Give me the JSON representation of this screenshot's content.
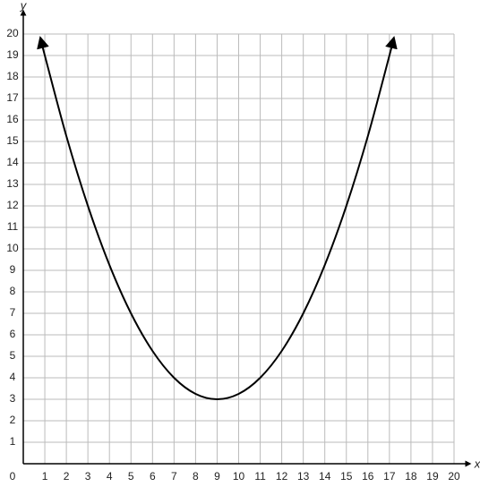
{
  "chart_data": {
    "type": "line",
    "x_label": "x",
    "y_label": "y",
    "x": [
      0.8,
      1,
      2,
      3,
      4,
      5,
      6,
      7,
      8,
      9,
      10,
      11,
      12,
      13,
      14,
      15,
      16,
      17,
      17.2
    ],
    "series": [
      {
        "color": "#000000",
        "values": [
          19.8,
          19,
          15.25,
          12,
          9.25,
          7,
          5.25,
          4,
          3.25,
          3,
          3.25,
          4,
          5.25,
          7,
          9.25,
          12,
          15.25,
          19,
          19.8
        ]
      }
    ],
    "xlim": [
      0,
      20
    ],
    "ylim": [
      0,
      20
    ],
    "xticks": [
      0,
      1,
      2,
      3,
      4,
      5,
      6,
      7,
      8,
      9,
      10,
      11,
      12,
      13,
      14,
      15,
      16,
      17,
      18,
      19,
      20
    ],
    "yticks": [
      1,
      2,
      3,
      4,
      5,
      6,
      7,
      8,
      9,
      10,
      11,
      12,
      13,
      14,
      15,
      16,
      17,
      18,
      19,
      20
    ],
    "grid": true
  }
}
